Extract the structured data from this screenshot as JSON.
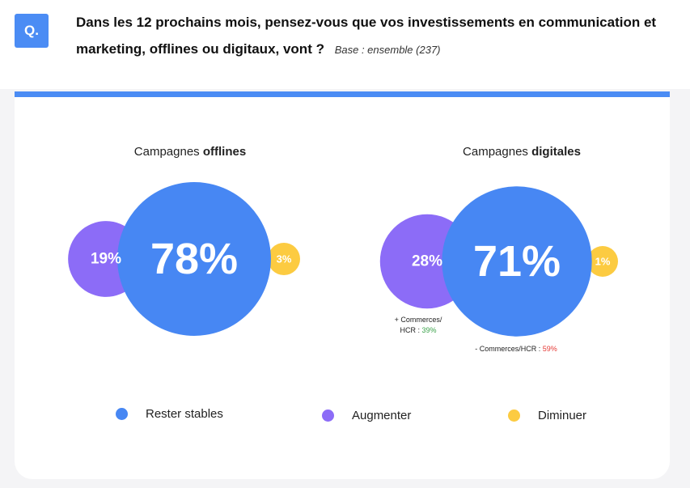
{
  "header": {
    "badge": "Q.",
    "question": "Dans les 12 prochains mois, pensez-vous que vos investissements en communication et marketing, offlines ou digitaux, vont ?",
    "base": "Base : ensemble (237)"
  },
  "colors": {
    "accent": "#4b8cf4",
    "stable": "#4787f3",
    "augmenter": "#8c6cf7",
    "diminuer": "#fccb41",
    "positive": "#3aa24a",
    "negative": "#e53935"
  },
  "chart_data": [
    {
      "type": "bubble",
      "title_prefix": "Campagnes ",
      "title_bold": "offlines",
      "categories": [
        "Augmenter",
        "Rester stables",
        "Diminuer"
      ],
      "values": [
        19,
        78,
        3
      ],
      "labels": [
        "19%",
        "78%",
        "3%"
      ],
      "annotations": []
    },
    {
      "type": "bubble",
      "title_prefix": "Campagnes ",
      "title_bold": "digitales",
      "categories": [
        "Augmenter",
        "Rester stables",
        "Diminuer"
      ],
      "values": [
        28,
        71,
        1
      ],
      "labels": [
        "28%",
        "71%",
        "1%"
      ],
      "annotations": [
        {
          "lines": [
            "+ Commerces/",
            "HCR : "
          ],
          "value": "39%",
          "tone": "positive"
        },
        {
          "lines": [
            "- Commerces/HCR : "
          ],
          "value": "59%",
          "tone": "negative"
        }
      ]
    }
  ],
  "legend": [
    {
      "label": "Rester stables",
      "color": "#4787f3"
    },
    {
      "label": "Augmenter",
      "color": "#8c6cf7"
    },
    {
      "label": "Diminuer",
      "color": "#fccb41"
    }
  ]
}
